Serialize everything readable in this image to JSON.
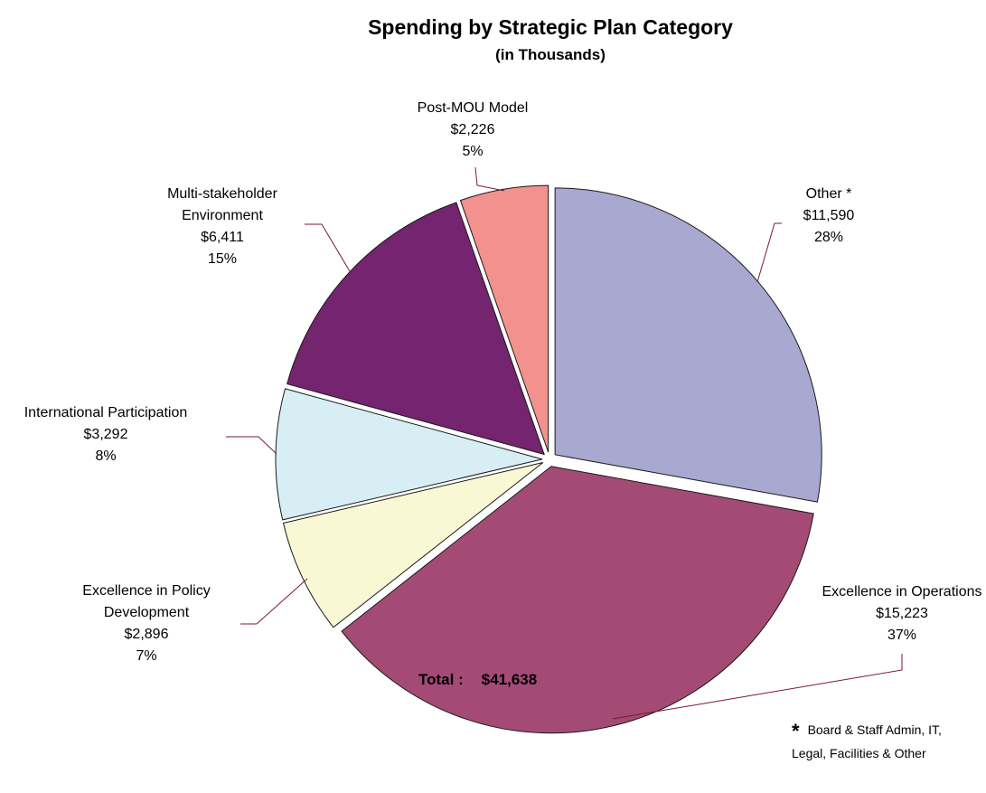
{
  "chart_data": {
    "type": "pie",
    "title": "Spending by Strategic Plan Category",
    "subtitle": "(in Thousands)",
    "slices": [
      {
        "label_lines": [
          "Other *"
        ],
        "value": 11590,
        "value_label": "$11,590",
        "percent_label": "28%",
        "color": "#a9a8d0"
      },
      {
        "label_lines": [
          "Excellence in Operations"
        ],
        "value": 15223,
        "value_label": "$15,223",
        "percent_label": "37%",
        "color": "#a34b75"
      },
      {
        "label_lines": [
          "Excellence in Policy",
          "Development"
        ],
        "value": 2896,
        "value_label": "$2,896",
        "percent_label": "7%",
        "color": "#f8f8d4"
      },
      {
        "label_lines": [
          "International Participation"
        ],
        "value": 3292,
        "value_label": "$3,292",
        "percent_label": "8%",
        "color": "#d6eef4"
      },
      {
        "label_lines": [
          "Multi-stakeholder",
          "Environment"
        ],
        "value": 6411,
        "value_label": "$6,411",
        "percent_label": "15%",
        "color": "#75246f"
      },
      {
        "label_lines": [
          "Post-MOU Model"
        ],
        "value": 2226,
        "value_label": "$2,226",
        "percent_label": "5%",
        "color": "#f2918e"
      }
    ]
  },
  "footer": {
    "total_label": "Total :",
    "total_value": "$41,638",
    "note_star": "*",
    "note_line1": "Board & Staff Admin, IT,",
    "note_line2": "Legal, Facilities & Other"
  },
  "colors": {
    "leader_line": "#7a1a2a",
    "slice_border": "#1a1a1a"
  }
}
